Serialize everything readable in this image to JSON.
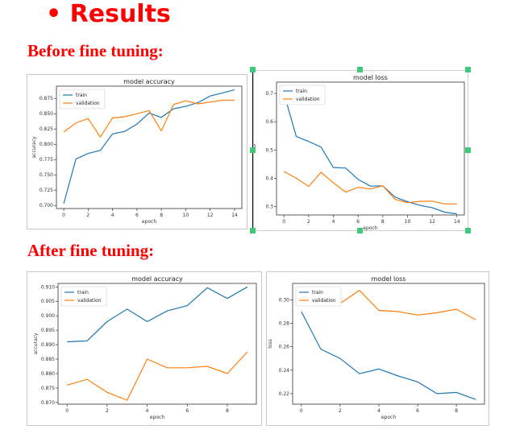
{
  "heading": {
    "bullet": "•",
    "text": "Results"
  },
  "sections": {
    "before": "Before fine tuning:",
    "after": "After fine tuning:"
  },
  "chart_data": [
    {
      "id": "before-accuracy",
      "type": "line",
      "title": "model accuracy",
      "xlabel": "epoch",
      "ylabel": "accuracy",
      "xlim": [
        -0.6,
        14.6
      ],
      "ylim": [
        0.695,
        0.895
      ],
      "xticks": [
        0,
        2,
        4,
        6,
        8,
        10,
        12,
        14
      ],
      "yticks": [
        0.7,
        0.725,
        0.75,
        0.775,
        0.8,
        0.825,
        0.85,
        0.875
      ],
      "ytick_labels": [
        "0.700",
        "0.725",
        "0.750",
        "0.775",
        "0.800",
        "0.825",
        "0.850",
        "0.875"
      ],
      "legend_position": "upper-left",
      "x": [
        0,
        1,
        2,
        3,
        4,
        5,
        6,
        7,
        8,
        9,
        10,
        11,
        12,
        13,
        14
      ],
      "series": [
        {
          "name": "train",
          "color": "#1f77b4",
          "values": [
            0.703,
            0.776,
            0.785,
            0.79,
            0.817,
            0.821,
            0.833,
            0.851,
            0.844,
            0.858,
            0.862,
            0.868,
            0.879,
            0.884,
            0.889
          ]
        },
        {
          "name": "validation",
          "color": "#ff7f0e",
          "values": [
            0.82,
            0.835,
            0.842,
            0.812,
            0.843,
            0.845,
            0.85,
            0.855,
            0.822,
            0.865,
            0.871,
            0.866,
            0.869,
            0.872,
            0.872
          ]
        }
      ]
    },
    {
      "id": "before-loss",
      "type": "line",
      "title": "model loss",
      "xlabel": "epoch",
      "ylabel": "loss",
      "xlim": [
        -0.6,
        14.6
      ],
      "ylim": [
        0.27,
        0.74
      ],
      "xticks": [
        0,
        2,
        4,
        6,
        8,
        10,
        12,
        14
      ],
      "yticks": [
        0.3,
        0.4,
        0.5,
        0.6,
        0.7
      ],
      "ytick_labels": [
        "0.3",
        "0.4",
        "0.5",
        "0.6",
        "0.7"
      ],
      "legend_position": "upper-left",
      "x": [
        0,
        1,
        2,
        3,
        4,
        5,
        6,
        7,
        8,
        9,
        10,
        11,
        12,
        13,
        14
      ],
      "series": [
        {
          "name": "train",
          "color": "#1f77b4",
          "values": [
            0.7,
            0.548,
            0.53,
            0.51,
            0.438,
            0.436,
            0.396,
            0.372,
            0.373,
            0.333,
            0.317,
            0.304,
            0.296,
            0.28,
            0.274
          ]
        },
        {
          "name": "validation",
          "color": "#ff7f0e",
          "values": [
            0.424,
            0.4,
            0.371,
            0.421,
            0.384,
            0.351,
            0.368,
            0.362,
            0.373,
            0.325,
            0.314,
            0.318,
            0.319,
            0.309,
            0.309
          ]
        }
      ]
    },
    {
      "id": "after-accuracy",
      "type": "line",
      "title": "model accuracy",
      "xlabel": "epoch",
      "ylabel": "accuracy",
      "xlim": [
        -0.45,
        9.45
      ],
      "ylim": [
        0.8694,
        0.9112
      ],
      "xticks": [
        0,
        2,
        4,
        6,
        8
      ],
      "yticks": [
        0.87,
        0.875,
        0.88,
        0.885,
        0.89,
        0.895,
        0.9,
        0.905,
        0.91
      ],
      "ytick_labels": [
        "0.870",
        "0.875",
        "0.880",
        "0.885",
        "0.890",
        "0.895",
        "0.900",
        "0.905",
        "0.910"
      ],
      "legend_position": "upper-left",
      "x": [
        0,
        1,
        2,
        3,
        4,
        5,
        6,
        7,
        8,
        9
      ],
      "series": [
        {
          "name": "train",
          "color": "#1f77b4",
          "values": [
            0.891,
            0.8913,
            0.898,
            0.9023,
            0.898,
            0.9017,
            0.9035,
            0.9097,
            0.906,
            0.91
          ]
        },
        {
          "name": "validation",
          "color": "#ff7f0e",
          "values": [
            0.876,
            0.878,
            0.8735,
            0.8708,
            0.885,
            0.882,
            0.882,
            0.8825,
            0.88,
            0.8875
          ]
        }
      ]
    },
    {
      "id": "after-loss",
      "type": "line",
      "title": "model loss",
      "xlabel": "epoch",
      "ylabel": "loss",
      "xlim": [
        -0.45,
        9.45
      ],
      "ylim": [
        0.211,
        0.314
      ],
      "xticks": [
        0,
        2,
        4,
        6,
        8
      ],
      "yticks": [
        0.22,
        0.24,
        0.26,
        0.28,
        0.3
      ],
      "ytick_labels": [
        "0.22",
        "0.24",
        "0.26",
        "0.28",
        "0.30"
      ],
      "legend_position": "upper-left",
      "x": [
        0,
        1,
        2,
        3,
        4,
        5,
        6,
        7,
        8,
        9
      ],
      "series": [
        {
          "name": "train",
          "color": "#1f77b4",
          "values": [
            0.29,
            0.258,
            0.25,
            0.237,
            0.241,
            0.235,
            0.23,
            0.22,
            0.221,
            0.215
          ]
        },
        {
          "name": "validation",
          "color": "#ff7f0e",
          "values": [
            0.3,
            0.3,
            0.297,
            0.308,
            0.291,
            0.29,
            0.287,
            0.289,
            0.292,
            0.283
          ]
        }
      ]
    }
  ]
}
